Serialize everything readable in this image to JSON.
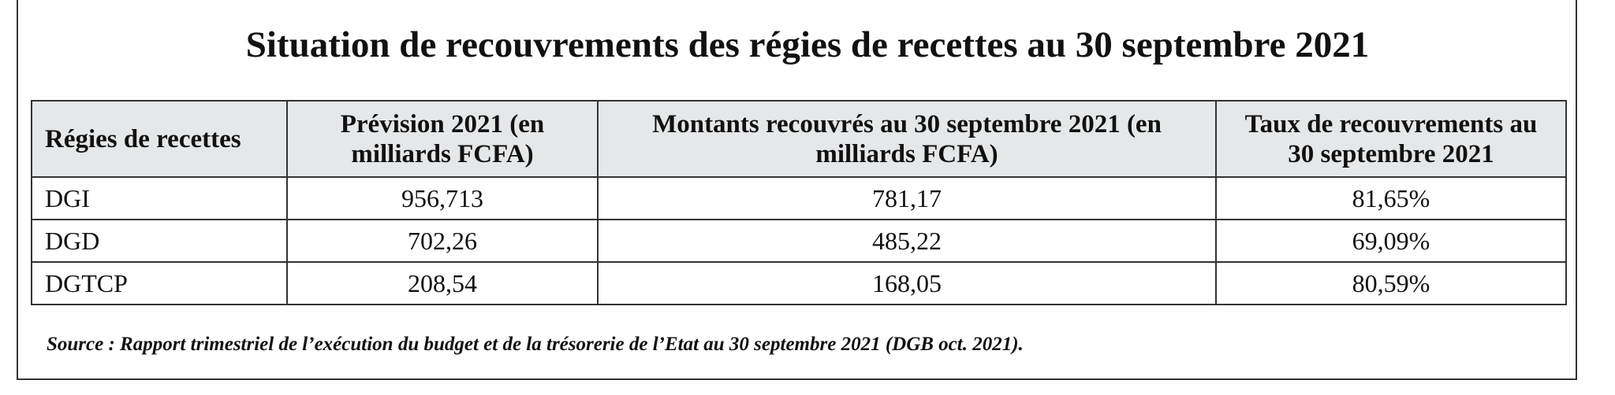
{
  "title": "Situation de recouvrements des régies de recettes au 30 septembre 2021",
  "table": {
    "header": [
      "Régies de recettes",
      "Prévision 2021 (en milliards FCFA)",
      "Montants recouvrés au 30 septembre 2021 (en milliards FCFA)",
      "Taux de recouvrements au 30 septembre 2021"
    ],
    "rows": [
      [
        "DGI",
        "956,713",
        "781,17",
        "81,65%"
      ],
      [
        "DGD",
        "702,26",
        "485,22",
        "69,09%"
      ],
      [
        "DGTCP",
        "208,54",
        "168,05",
        "80,59%"
      ]
    ]
  },
  "source": "Source : Rapport trimestriel de l’exécution du budget et de la trésorerie de l’Etat au 30 septembre 2021 (DGB oct. 2021)."
}
